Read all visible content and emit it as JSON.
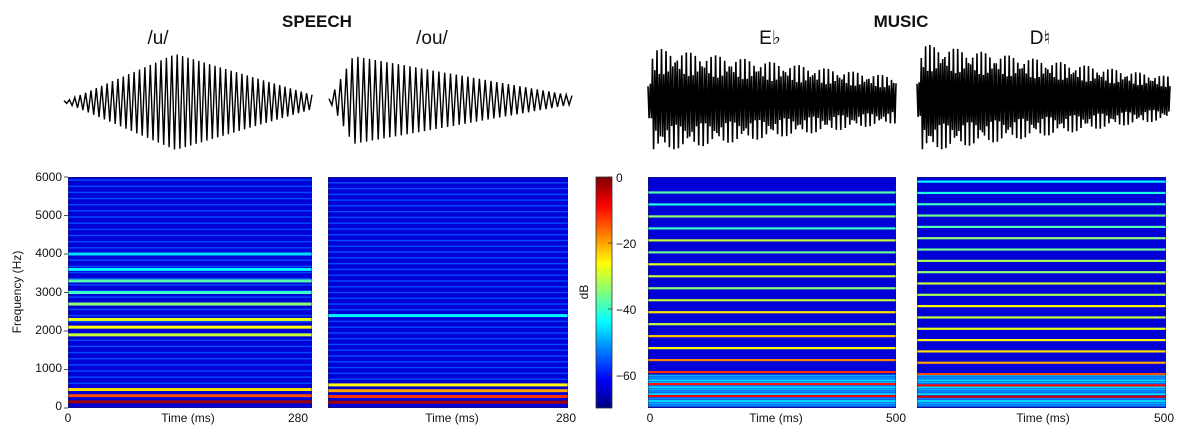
{
  "groups": [
    {
      "title": "SPEECH"
    },
    {
      "title": "MUSIC"
    }
  ],
  "colorbar": {
    "label": "dB",
    "ticks": [
      "0",
      "−20",
      "−40",
      "−60"
    ],
    "tick_values": [
      0,
      -20,
      -40,
      -60
    ],
    "range": [
      -70,
      0
    ],
    "colormap": [
      "#00007f",
      "#0000ff",
      "#007fff",
      "#00ffff",
      "#7fff7f",
      "#ffff00",
      "#ff7f00",
      "#ff0000",
      "#7f0000"
    ]
  },
  "chart_data": [
    {
      "type": "heatmap",
      "group": "SPEECH",
      "label": "/u/",
      "xlabel": "Time (ms)",
      "x_ticks": [
        "0",
        "280"
      ],
      "xlim": [
        0,
        280
      ],
      "ylabel": "Frequency (Hz)",
      "y_ticks": [
        "0",
        "1000",
        "2000",
        "3000",
        "4000",
        "5000",
        "6000"
      ],
      "ylim": [
        0,
        6000
      ],
      "f0_hz": 160,
      "bands": [
        {
          "freq": 160,
          "level": -2
        },
        {
          "freq": 320,
          "level": -14
        },
        {
          "freq": 480,
          "level": -24
        },
        {
          "freq": 1900,
          "level": -30
        },
        {
          "freq": 2100,
          "level": -26
        },
        {
          "freq": 2300,
          "level": -28
        },
        {
          "freq": 2700,
          "level": -34
        },
        {
          "freq": 3000,
          "level": -40
        },
        {
          "freq": 3300,
          "level": -38
        },
        {
          "freq": 3600,
          "level": -44
        },
        {
          "freq": 4000,
          "level": -46
        }
      ]
    },
    {
      "type": "heatmap",
      "group": "SPEECH",
      "label": "/ou/",
      "xlabel": "Time (ms)",
      "x_ticks": [
        "280"
      ],
      "xlim": [
        0,
        280
      ],
      "ylim": [
        0,
        6000
      ],
      "f0_hz": 150,
      "bands": [
        {
          "freq": 150,
          "level": -3
        },
        {
          "freq": 300,
          "level": -12
        },
        {
          "freq": 450,
          "level": -20
        },
        {
          "freq": 600,
          "level": -26
        },
        {
          "freq": 2400,
          "level": -44
        }
      ]
    },
    {
      "type": "heatmap",
      "group": "MUSIC",
      "label": "E♭",
      "xlabel": "Time (ms)",
      "x_ticks": [
        "0",
        "500"
      ],
      "xlim": [
        0,
        500
      ],
      "ylim": [
        0,
        6000
      ],
      "f0_hz": 311,
      "harmonic_levels": [
        -8,
        -10,
        -12,
        -18,
        -26,
        -22,
        -30,
        -24,
        -30,
        -34,
        -30,
        -28,
        -36,
        -30,
        -40,
        -34,
        -42,
        -38
      ]
    },
    {
      "type": "heatmap",
      "group": "MUSIC",
      "label": "D♮",
      "xlabel": "Time (ms)",
      "x_ticks": [
        "500"
      ],
      "xlim": [
        0,
        500
      ],
      "ylim": [
        0,
        6000
      ],
      "f0_hz": 294,
      "harmonic_levels": [
        -6,
        -9,
        -14,
        -20,
        -24,
        -26,
        -28,
        -30,
        -26,
        -32,
        -30,
        -34,
        -32,
        -36,
        -34,
        -38,
        -36,
        -40,
        -42,
        -44
      ]
    }
  ]
}
